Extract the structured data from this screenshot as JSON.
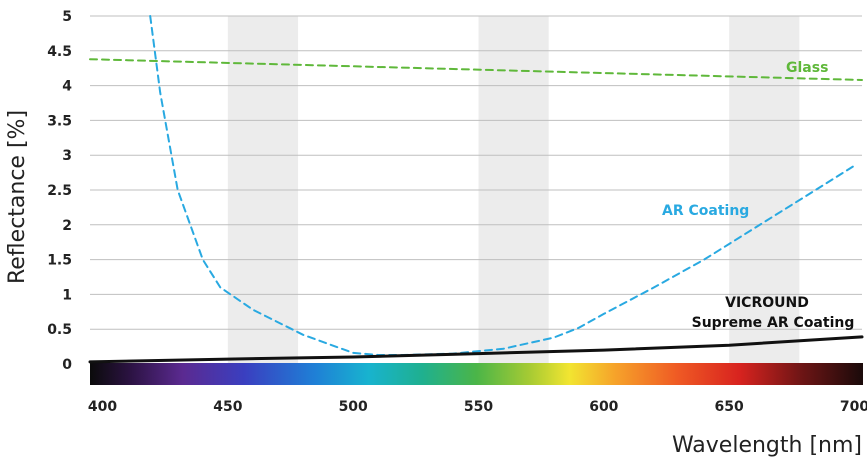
{
  "chart_data": {
    "type": "line",
    "title": "",
    "xlabel": "Wavelength [nm]",
    "ylabel": "Reflectance [%]",
    "xlim": [
      395,
      703
    ],
    "ylim": [
      0,
      5
    ],
    "x_ticks": [
      "400",
      "450",
      "500",
      "550",
      "600",
      "650",
      "700"
    ],
    "y_ticks": [
      "0",
      "0.5",
      "1",
      "1.5",
      "2",
      "2.5",
      "3",
      "3.5",
      "4",
      "4.5",
      "5"
    ],
    "grid": true,
    "background_bands": "alternating light-gray vertical bands",
    "spectrum_bar": true,
    "series": [
      {
        "name": "Glass",
        "label": "Glass",
        "color": "#5fb83a",
        "style": "dashed",
        "x": [
          395,
          703
        ],
        "y": [
          4.38,
          4.08
        ]
      },
      {
        "name": "AR Coating",
        "label": "AR Coating",
        "color": "#29a9e1",
        "style": "dashed",
        "x": [
          419,
          423,
          430,
          440,
          447,
          460,
          480,
          500,
          510,
          520,
          540,
          560,
          580,
          590,
          600,
          620,
          640,
          660,
          680,
          700
        ],
        "y": [
          5.0,
          3.9,
          2.5,
          1.5,
          1.1,
          0.78,
          0.42,
          0.16,
          0.13,
          0.13,
          0.15,
          0.22,
          0.38,
          0.52,
          0.72,
          1.1,
          1.5,
          1.95,
          2.4,
          2.85
        ]
      },
      {
        "name": "VICROUND Supreme AR Coating",
        "label_line1": "VICROUND",
        "label_line2": "Supreme AR Coating",
        "color": "#111111",
        "style": "solid",
        "x": [
          395,
          450,
          500,
          550,
          600,
          650,
          703
        ],
        "y": [
          0.03,
          0.07,
          0.1,
          0.15,
          0.2,
          0.27,
          0.39
        ]
      }
    ]
  }
}
